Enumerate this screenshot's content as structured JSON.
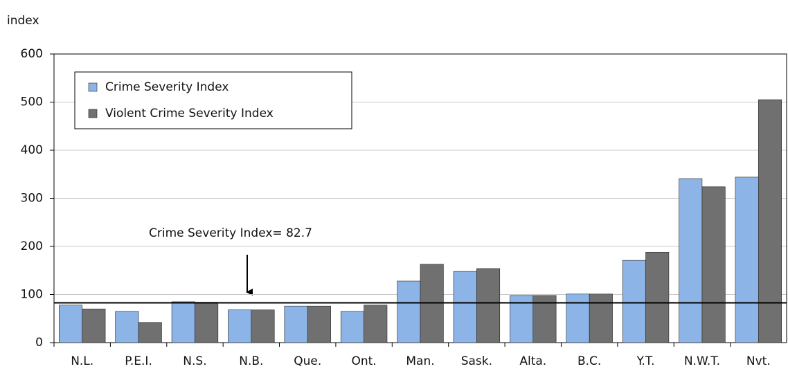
{
  "chart_data": {
    "type": "bar",
    "y_axis_label": "index",
    "categories": [
      "N.L.",
      "P.E.I.",
      "N.S.",
      "N.B.",
      "Que.",
      "Ont.",
      "Man.",
      "Sask.",
      "Alta.",
      "B.C.",
      "Y.T.",
      "N.W.T.",
      "Nvt."
    ],
    "series": [
      {
        "name": "Crime Severity Index",
        "color": "#8db4e6",
        "values": [
          78,
          65,
          85,
          68,
          76,
          65,
          128,
          148,
          98,
          101,
          171,
          341,
          344
        ]
      },
      {
        "name": "Violent Crime Severity Index",
        "color": "#707070",
        "values": [
          70,
          42,
          84,
          68,
          76,
          78,
          163,
          154,
          98,
          101,
          188,
          324,
          505
        ]
      }
    ],
    "ylim": [
      0,
      600
    ],
    "yticks": [
      0,
      100,
      200,
      300,
      400,
      500,
      600
    ],
    "grid": true,
    "legend": "top-left",
    "reference_line": {
      "value": 82.7,
      "label": "Crime Severity Index= 82.7"
    }
  }
}
